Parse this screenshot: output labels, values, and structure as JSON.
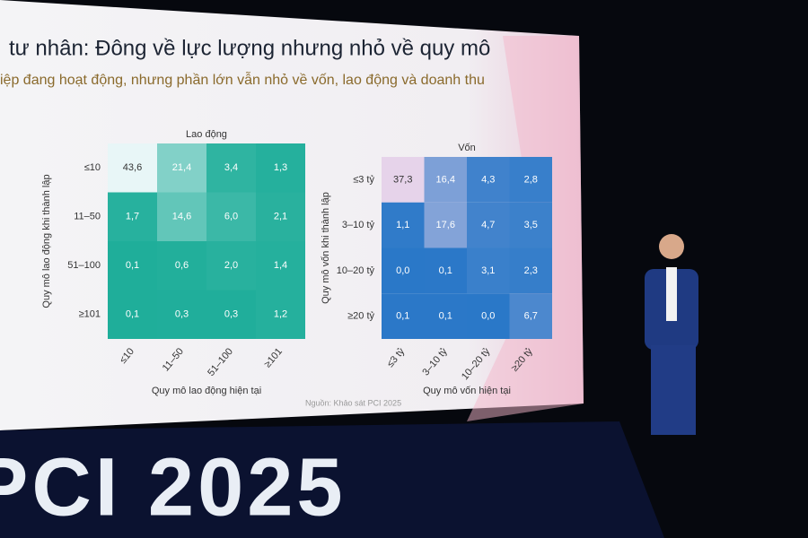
{
  "slide_title": "tư nhân: Đông về lực lượng nhưng nhỏ về quy mô",
  "slide_subtitle": "iệp đang hoạt động, nhưng phần lớn vẫn nhỏ về vốn, lao động và doanh thu",
  "source": "Nguồn: Khảo sát PCI 2025",
  "stage_logo": "PCI 2025",
  "chart_data": [
    {
      "type": "heatmap",
      "title": "Lao động",
      "x_label": "Quy mô lao động hiện tại",
      "y_label": "Quy mô lao động khi thành lập",
      "x_categories": [
        "≤10",
        "11–50",
        "51–100",
        "≥101"
      ],
      "y_categories": [
        "≤10",
        "11–50",
        "51–100",
        "≥101"
      ],
      "values": [
        [
          43.6,
          21.4,
          3.4,
          1.3
        ],
        [
          1.7,
          14.6,
          6.0,
          2.1
        ],
        [
          0.1,
          0.6,
          2.0,
          1.4
        ],
        [
          0.1,
          0.3,
          0.3,
          1.2
        ]
      ],
      "value_labels": [
        [
          "43,6",
          "21,4",
          "3,4",
          "1,3"
        ],
        [
          "1,7",
          "14,6",
          "6,0",
          "2,1"
        ],
        [
          "0,1",
          "0,6",
          "2,0",
          "1,4"
        ],
        [
          "0,1",
          "0,3",
          "0,3",
          "1,2"
        ]
      ],
      "colorscale": [
        "#1fae9a",
        "#e8f6f7"
      ]
    },
    {
      "type": "heatmap",
      "title": "Vốn",
      "x_label": "Quy mô vốn hiện tại",
      "y_label": "Quy mô vốn khi thành lập",
      "x_categories": [
        "≤3 tỷ",
        "3–10 tỷ",
        "10–20 tỷ",
        "≥20 tỷ"
      ],
      "y_categories": [
        "≤3 tỷ",
        "3–10 tỷ",
        "10–20 tỷ",
        "≥20 tỷ"
      ],
      "values": [
        [
          37.3,
          16.4,
          4.3,
          2.8
        ],
        [
          1.1,
          17.6,
          4.7,
          3.5
        ],
        [
          0.0,
          0.1,
          3.1,
          2.3
        ],
        [
          0.1,
          0.1,
          0.0,
          6.7
        ]
      ],
      "value_labels": [
        [
          "37,3",
          "16,4",
          "4,3",
          "2,8"
        ],
        [
          "1,1",
          "17,6",
          "4,7",
          "3,5"
        ],
        [
          "0,0",
          "0,1",
          "3,1",
          "2,3"
        ],
        [
          "0,1",
          "0,1",
          "0,0",
          "6,7"
        ]
      ],
      "colorscale": [
        "#2a78c8",
        "#e6d3ea"
      ]
    }
  ]
}
